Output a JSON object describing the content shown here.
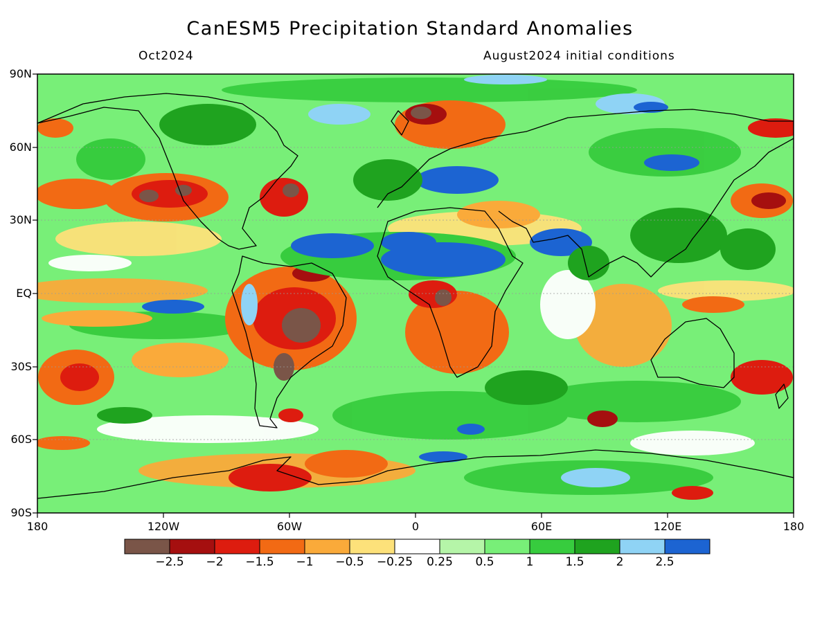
{
  "header": {
    "title": "CanESM5 Precipitation Standard Anomalies",
    "valid_month": "Oct2024",
    "initial_conditions": "August2024 initial conditions"
  },
  "axes": {
    "lat_labels": [
      "90N",
      "60N",
      "30N",
      "EQ",
      "30S",
      "60S",
      "90S"
    ],
    "lon_labels": [
      "180",
      "120W",
      "60W",
      "0",
      "60E",
      "120E",
      "180"
    ]
  },
  "colorbar": {
    "colors": [
      "#7a5548",
      "#a50f0f",
      "#dd1c0f",
      "#f26a14",
      "#faaa3a",
      "#fde17a",
      "#ffffff",
      "#b5f5a8",
      "#78ef78",
      "#37cc3e",
      "#1fa31f",
      "#8fd3f5",
      "#1c64d2"
    ],
    "labels": [
      "−2.5",
      "−2",
      "−1.5",
      "−1",
      "−0.5",
      "−0.25",
      "0.25",
      "0.5",
      "1",
      "1.5",
      "2",
      "2.5"
    ]
  }
}
